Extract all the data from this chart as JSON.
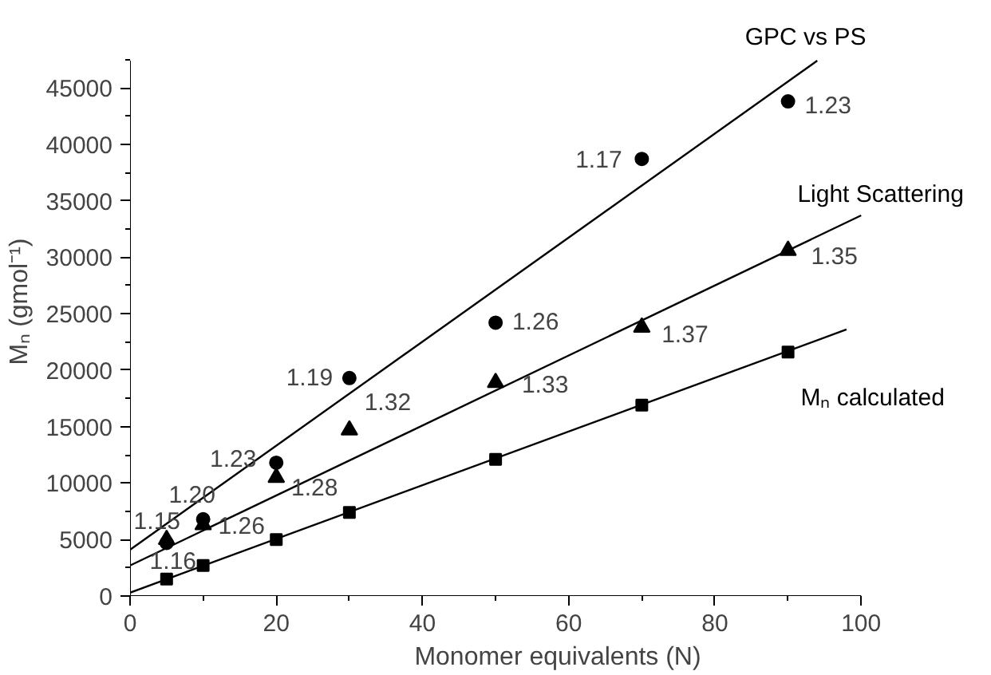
{
  "chart_data": {
    "type": "scatter",
    "xlabel": "Monomer equivalents (N)",
    "ylabel": "Mₙ (gmol⁻¹)",
    "xlim": [
      0,
      100
    ],
    "ylim": [
      0,
      47400
    ],
    "xticks": [
      0,
      20,
      40,
      60,
      80,
      100
    ],
    "yticks": [
      0,
      5000,
      10000,
      15000,
      20000,
      25000,
      30000,
      35000,
      40000,
      45000
    ],
    "grid": false,
    "x": [
      5,
      10,
      20,
      30,
      50,
      70,
      90
    ],
    "series": [
      {
        "name": "GPC vs PS",
        "color": "#000000",
        "marker": "circle",
        "values": [
          4700,
          6800,
          11800,
          19300,
          24200,
          38700,
          43800
        ]
      },
      {
        "name": "Light Scattering",
        "color": "#000000",
        "marker": "triangle",
        "values": [
          5000,
          6300,
          10500,
          14700,
          18900,
          23800,
          30600
        ]
      },
      {
        "name": "Mₙ calculated",
        "color": "#000000",
        "marker": "square",
        "values": [
          1500,
          2700,
          5000,
          7400,
          12100,
          16900,
          21600
        ]
      },
      {
        "type": "line",
        "color": "#000000",
        "x": [
          0,
          94
        ],
        "values": [
          4100,
          47400
        ]
      },
      {
        "type": "line",
        "color": "#000000",
        "x": [
          0,
          100
        ],
        "values": [
          2700,
          33700
        ]
      },
      {
        "type": "line",
        "color": "#000000",
        "x": [
          0,
          98
        ],
        "values": [
          300,
          23600
        ]
      }
    ],
    "annotations": [
      {
        "text": "1.23",
        "x": 90,
        "y": 43800
      },
      {
        "text": "1.17",
        "x": 70,
        "y": 38700
      },
      {
        "text": "1.26",
        "x": 50,
        "y": 24200
      },
      {
        "text": "1.19",
        "x": 30,
        "y": 19300
      },
      {
        "text": "1.23",
        "x": 20,
        "y": 11800
      },
      {
        "text": "1.20",
        "x": 10,
        "y": 6800
      },
      {
        "text": "1.15",
        "x": 5,
        "y": 4700
      },
      {
        "text": "1.16",
        "x": 5,
        "y": 1500
      },
      {
        "text": "1.26",
        "x": 10,
        "y": 6300
      },
      {
        "text": "1.28",
        "x": 20,
        "y": 10500
      },
      {
        "text": "1.32",
        "x": 30,
        "y": 14700
      },
      {
        "text": "1.33",
        "x": 50,
        "y": 18900
      },
      {
        "text": "1.37",
        "x": 70,
        "y": 23800
      },
      {
        "text": "1.35",
        "x": 90,
        "y": 30600
      }
    ]
  }
}
